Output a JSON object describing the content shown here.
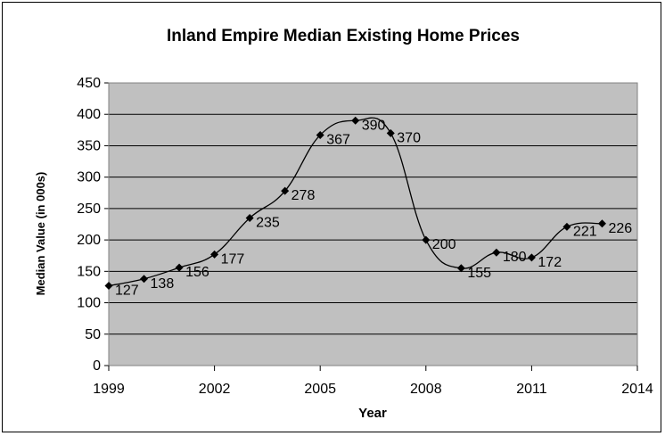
{
  "chart_data": {
    "type": "line",
    "title": "Inland Empire Median Existing Home Prices",
    "xlabel": "Year",
    "ylabel": "Median Value (in 000s)",
    "xlim": [
      1999,
      2014
    ],
    "ylim": [
      0,
      450
    ],
    "x_ticks": [
      1999,
      2002,
      2005,
      2008,
      2011,
      2014
    ],
    "y_ticks": [
      0,
      50,
      100,
      150,
      200,
      250,
      300,
      350,
      400,
      450
    ],
    "grid": true,
    "legend": "none",
    "colors": {
      "plot_background": "#c0c0c0",
      "line": "#000000",
      "marker": "#000000"
    },
    "series": [
      {
        "x": [
          1999,
          2000,
          2001,
          2002,
          2003,
          2004,
          2005,
          2006,
          2007,
          2008,
          2009,
          2010,
          2011,
          2012,
          2013
        ],
        "values": [
          127,
          138,
          156,
          177,
          235,
          278,
          367,
          390,
          370,
          200,
          155,
          180,
          172,
          221,
          226
        ]
      }
    ]
  }
}
